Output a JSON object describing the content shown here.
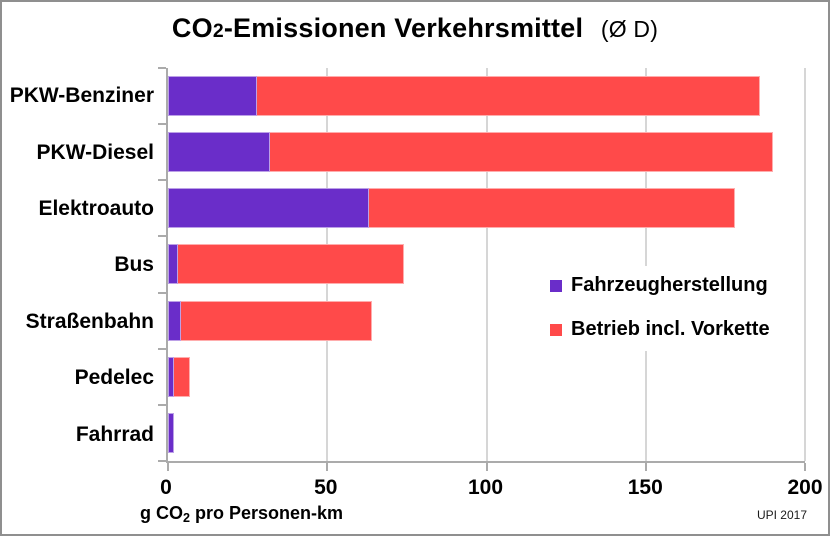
{
  "title": {
    "pre": "CO",
    "sub": "2",
    "post": "-Emissionen Verkehrsmittel",
    "suffix": "(Ø D)"
  },
  "axis_label": {
    "pre": "g CO",
    "sub": "2",
    "post": " pro Personen-km"
  },
  "credit": "UPI 2017",
  "colors": {
    "fahrzeugherstellung": "#6a2dc9",
    "betrieb": "#ff4a4a",
    "grid": "#d6d6d6",
    "axis": "#ababab"
  },
  "chart_data": {
    "type": "bar",
    "orientation": "horizontal",
    "stacked": true,
    "title": "CO2-Emissionen Verkehrsmittel (Ø D)",
    "xlabel": "g CO2 pro Personen-km",
    "xlim": [
      0,
      200
    ],
    "xticks": [
      0,
      50,
      100,
      150,
      200
    ],
    "grid": "vertical",
    "legend_position": "middle-right",
    "categories": [
      "PKW-Benziner",
      "PKW-Diesel",
      "Elektroauto",
      "Bus",
      "Straßenbahn",
      "Pedelec",
      "Fahrrad"
    ],
    "series": [
      {
        "name": "Fahrzeugherstellung",
        "color": "#6a2dc9",
        "values": [
          28,
          32,
          63,
          3,
          4,
          2,
          2
        ]
      },
      {
        "name": "Betrieb incl. Vorkette",
        "color": "#ff4a4a",
        "values": [
          158,
          158,
          115,
          71,
          60,
          5,
          0
        ]
      }
    ],
    "totals": [
      186,
      190,
      178,
      74,
      64,
      7,
      2
    ]
  }
}
